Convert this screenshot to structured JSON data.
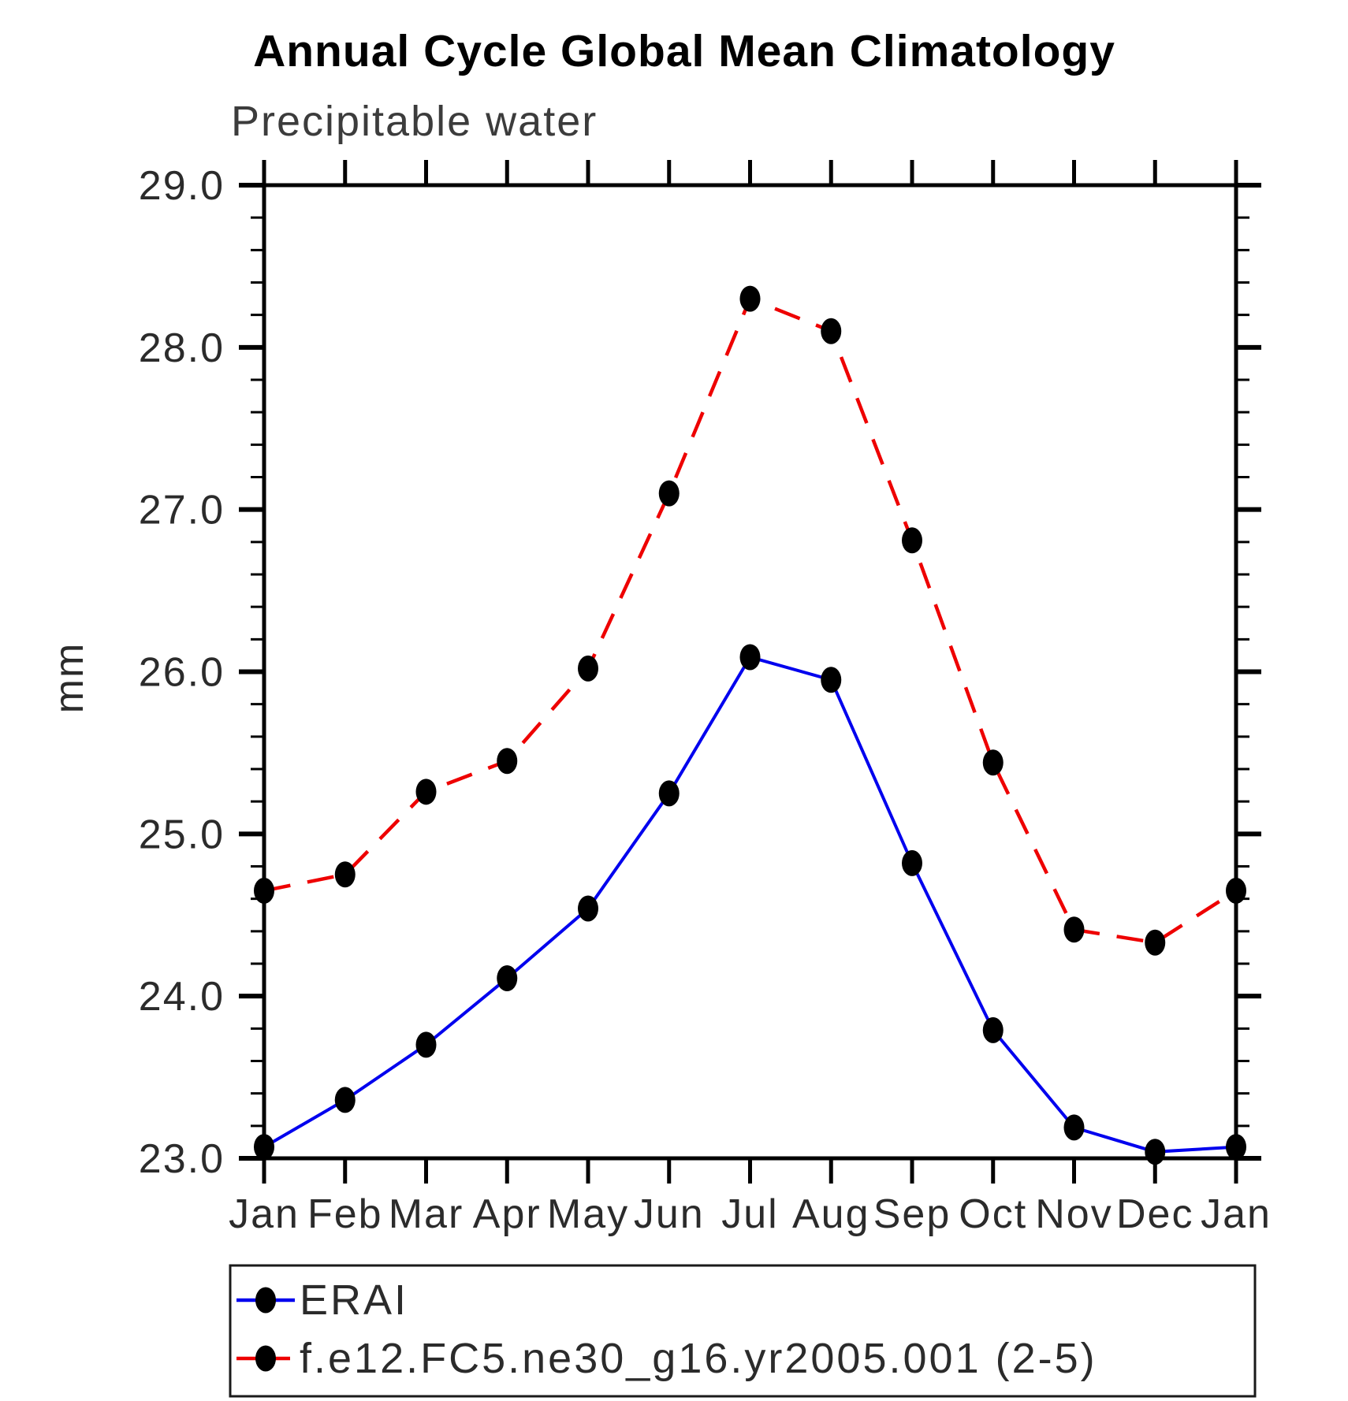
{
  "page": {
    "background_color": "#ffffff",
    "accent_blue": "#0000ee",
    "accent_red": "#ee0000",
    "marker_color": "#000000"
  },
  "chart_data": {
    "type": "line",
    "title": "Annual Cycle Global Mean Climatology",
    "subtitle": "Precipitable water",
    "xlabel": "",
    "ylabel": "mm",
    "categories": [
      "Jan",
      "Feb",
      "Mar",
      "Apr",
      "May",
      "Jun",
      "Jul",
      "Aug",
      "Sep",
      "Oct",
      "Nov",
      "Dec",
      "Jan"
    ],
    "ylim": [
      23.0,
      29.0
    ],
    "ytick_major_step": 1.0,
    "ytick_minor_step": 0.2,
    "ytick_labels": [
      "23.0",
      "24.0",
      "25.0",
      "26.0",
      "27.0",
      "28.0",
      "29.0"
    ],
    "grid": false,
    "legend_position": "bottom",
    "series": [
      {
        "name": "ERAI",
        "color": "#0000ee",
        "line_style": "solid",
        "marker": "filled-black-circle",
        "values": [
          23.07,
          23.36,
          23.7,
          24.11,
          24.54,
          25.25,
          26.09,
          25.95,
          24.82,
          23.79,
          23.19,
          23.04,
          23.07
        ]
      },
      {
        "name": "f.e12.FC5.ne30_g16.yr2005.001 (2-5)",
        "color": "#ee0000",
        "line_style": "dashed",
        "marker": "filled-black-circle",
        "values": [
          24.65,
          24.75,
          25.26,
          25.45,
          26.02,
          27.1,
          28.3,
          28.1,
          26.81,
          25.44,
          24.41,
          24.33,
          24.65
        ]
      }
    ]
  }
}
